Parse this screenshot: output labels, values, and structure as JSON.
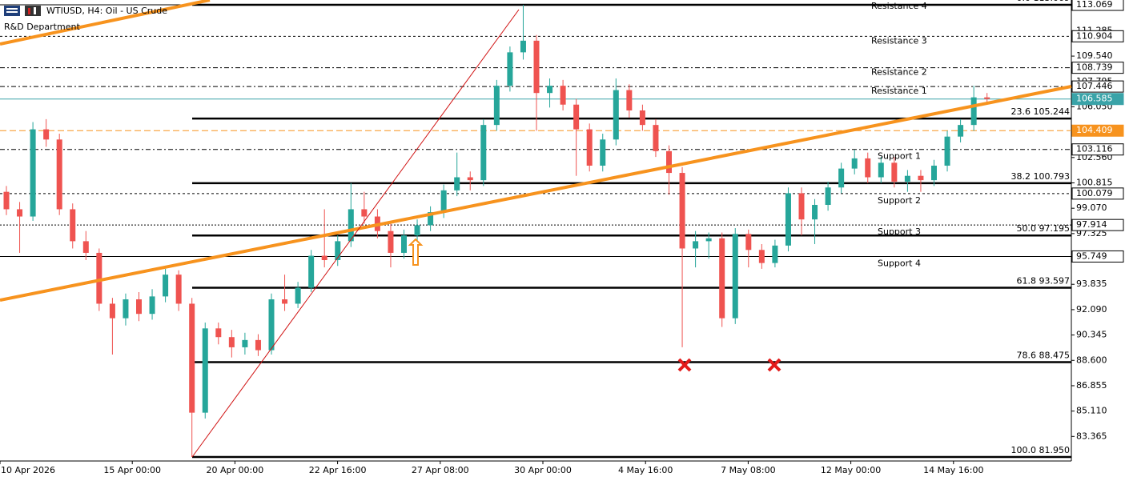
{
  "chart_data": {
    "type": "candlestick",
    "title": "WTIUSD, H4:  Oil - US Crude",
    "subtitle": "R&D Department",
    "up_color": "#26a69a",
    "down_color": "#ef5350",
    "ylim": [
      81.73,
      113.07
    ],
    "yticks": [
      83.365,
      {
        "value": 85.11,
        "label": "85.110"
      },
      86.855,
      {
        "value": 88.6,
        "label": "88.600"
      },
      90.345,
      {
        "value": 92.09,
        "label": "92.090"
      },
      93.835,
      97.325,
      {
        "value": 99.07,
        "label": "99.070"
      },
      100.815,
      {
        "value": 102.56,
        "label": "102.560"
      },
      {
        "value": 106.05,
        "label": "106.050"
      },
      107.795,
      {
        "value": 109.54,
        "label": "109.540"
      },
      111.285
    ],
    "x_labels": [
      "10 Apr 2026",
      "15 Apr 00:00",
      "20 Apr 00:00",
      "22 Apr 16:00",
      "27 Apr 08:00",
      "30 Apr 00:00",
      "4 May 16:00",
      "7 May 08:00",
      "12 May 00:00",
      "14 May 16:00"
    ],
    "levels": [
      {
        "name": "Resistance 4",
        "value": 113.069,
        "dash": "none"
      },
      {
        "name": "Resistance 3",
        "value": 110.904,
        "dash": "3,3"
      },
      {
        "name": "Resistance 2",
        "value": 108.739,
        "dash": "6,3,2,3"
      },
      {
        "name": "Resistance 1",
        "value": 107.446,
        "dash": "6,3,2,3"
      },
      {
        "name": "Support 1",
        "value": 103.116,
        "dash": "6,3,2,3"
      },
      {
        "name": "Support 2",
        "value": 100.079,
        "dash": "3,3"
      },
      {
        "name": "Support 3",
        "value": 97.914,
        "dash": "2,2"
      },
      {
        "name": "Support 4",
        "value": 95.749,
        "dash": "none"
      }
    ],
    "price_lines": [
      {
        "value": 106.585,
        "color": "#3aa3a8"
      },
      {
        "value": 104.409,
        "color": "#f7931e"
      }
    ],
    "fib_levels": [
      {
        "ratio": "0.0",
        "price": 113.069
      },
      {
        "ratio": "23.6",
        "price": 105.244
      },
      {
        "ratio": "38.2",
        "price": 100.793
      },
      {
        "ratio": "50.0",
        "price": 97.195
      },
      {
        "ratio": "61.8",
        "price": 93.597
      },
      {
        "ratio": "78.6",
        "price": 88.475
      },
      {
        "ratio": "100.0",
        "price": {
          "value": 81.95,
          "label": "81.950"
        }
      }
    ],
    "candles": [
      [
        100.2,
        100.6,
        98.6,
        99.0
      ],
      [
        99.0,
        99.5,
        96.0,
        98.5
      ],
      [
        98.5,
        105.0,
        98.2,
        104.5
      ],
      [
        104.5,
        105.2,
        103.3,
        103.8
      ],
      [
        103.8,
        104.2,
        98.6,
        99.0
      ],
      [
        99.0,
        99.4,
        96.3,
        96.8
      ],
      [
        96.8,
        97.5,
        95.5,
        96.0
      ],
      [
        96.0,
        96.3,
        92.0,
        92.5
      ],
      [
        92.5,
        92.9,
        89.0,
        91.5
      ],
      [
        91.5,
        93.2,
        91.0,
        92.8
      ],
      [
        92.8,
        93.3,
        91.3,
        91.8
      ],
      [
        91.8,
        93.5,
        91.4,
        93.0
      ],
      [
        93.0,
        94.9,
        92.6,
        94.5
      ],
      [
        94.5,
        94.8,
        92.0,
        92.5
      ],
      [
        92.5,
        92.9,
        81.95,
        85.0
      ],
      [
        85.0,
        91.2,
        84.6,
        90.8
      ],
      [
        90.8,
        91.2,
        89.7,
        90.2
      ],
      [
        90.2,
        90.7,
        88.8,
        89.5
      ],
      [
        89.5,
        90.5,
        89.0,
        90.0
      ],
      [
        90.0,
        90.4,
        88.9,
        89.3
      ],
      [
        89.3,
        93.2,
        89.0,
        92.8
      ],
      [
        92.8,
        94.5,
        92.0,
        92.5
      ],
      [
        92.5,
        94.0,
        92.2,
        93.6
      ],
      [
        93.6,
        96.2,
        93.3,
        95.8
      ],
      [
        95.8,
        99.0,
        95.0,
        95.5
      ],
      [
        95.5,
        97.2,
        95.1,
        96.8
      ],
      [
        96.8,
        100.8,
        96.4,
        99.0
      ],
      [
        99.0,
        100.2,
        98.0,
        98.5
      ],
      [
        98.5,
        99.0,
        97.0,
        97.5
      ],
      [
        97.5,
        98.0,
        95.0,
        96.0
      ],
      [
        96.0,
        97.6,
        95.6,
        97.2
      ],
      [
        97.2,
        98.3,
        96.8,
        97.9
      ],
      [
        97.9,
        99.2,
        97.5,
        98.8
      ],
      [
        98.8,
        100.7,
        98.4,
        100.3
      ],
      [
        100.3,
        102.9,
        99.9,
        101.2
      ],
      [
        101.2,
        101.6,
        100.3,
        101.0
      ],
      [
        101.0,
        105.2,
        100.6,
        104.8
      ],
      [
        104.8,
        107.9,
        104.4,
        107.5
      ],
      [
        107.5,
        110.2,
        107.1,
        109.8
      ],
      [
        109.8,
        113.069,
        109.3,
        110.6
      ],
      [
        110.6,
        111.0,
        104.4,
        107.0
      ],
      [
        107.0,
        108.0,
        106.0,
        107.5
      ],
      [
        107.5,
        107.9,
        105.8,
        106.2
      ],
      [
        106.2,
        106.6,
        101.3,
        104.5
      ],
      [
        104.5,
        104.9,
        101.6,
        102.0
      ],
      [
        102.0,
        104.2,
        101.6,
        103.8
      ],
      [
        103.8,
        108.0,
        103.4,
        107.2
      ],
      [
        107.2,
        107.6,
        105.3,
        105.8
      ],
      [
        105.8,
        106.2,
        104.4,
        104.8
      ],
      [
        104.8,
        105.2,
        102.6,
        103.0
      ],
      [
        103.0,
        103.4,
        100.0,
        101.5
      ],
      [
        101.5,
        101.9,
        89.5,
        96.3
      ],
      [
        96.3,
        97.5,
        95.0,
        96.8
      ],
      [
        96.8,
        97.4,
        95.6,
        97.0
      ],
      [
        97.0,
        97.4,
        90.9,
        91.5
      ],
      [
        91.5,
        97.7,
        91.1,
        97.3
      ],
      [
        97.3,
        97.6,
        95.0,
        96.2
      ],
      [
        96.2,
        96.6,
        94.9,
        95.3
      ],
      [
        95.3,
        96.9,
        95.0,
        96.5
      ],
      [
        96.5,
        100.5,
        96.1,
        100.1
      ],
      [
        100.1,
        100.5,
        97.2,
        98.3
      ],
      [
        98.3,
        99.7,
        96.6,
        99.3
      ],
      [
        99.3,
        100.9,
        98.9,
        100.5
      ],
      [
        100.5,
        102.2,
        100.1,
        101.8
      ],
      [
        101.8,
        103.1,
        101.4,
        102.5
      ],
      [
        102.5,
        102.9,
        100.8,
        101.2
      ],
      [
        101.2,
        102.6,
        100.8,
        102.2
      ],
      [
        102.2,
        102.6,
        100.5,
        100.9
      ],
      [
        100.9,
        101.7,
        100.2,
        101.3
      ],
      [
        101.3,
        101.7,
        100.2,
        101.0
      ],
      [
        101.0,
        102.4,
        100.6,
        102.0
      ],
      [
        102.0,
        104.4,
        101.6,
        104.0
      ],
      [
        104.0,
        105.2,
        103.6,
        104.8
      ],
      [
        104.8,
        107.5,
        104.4,
        106.7
      ],
      [
        106.7,
        107.0,
        106.3,
        106.585
      ]
    ]
  }
}
